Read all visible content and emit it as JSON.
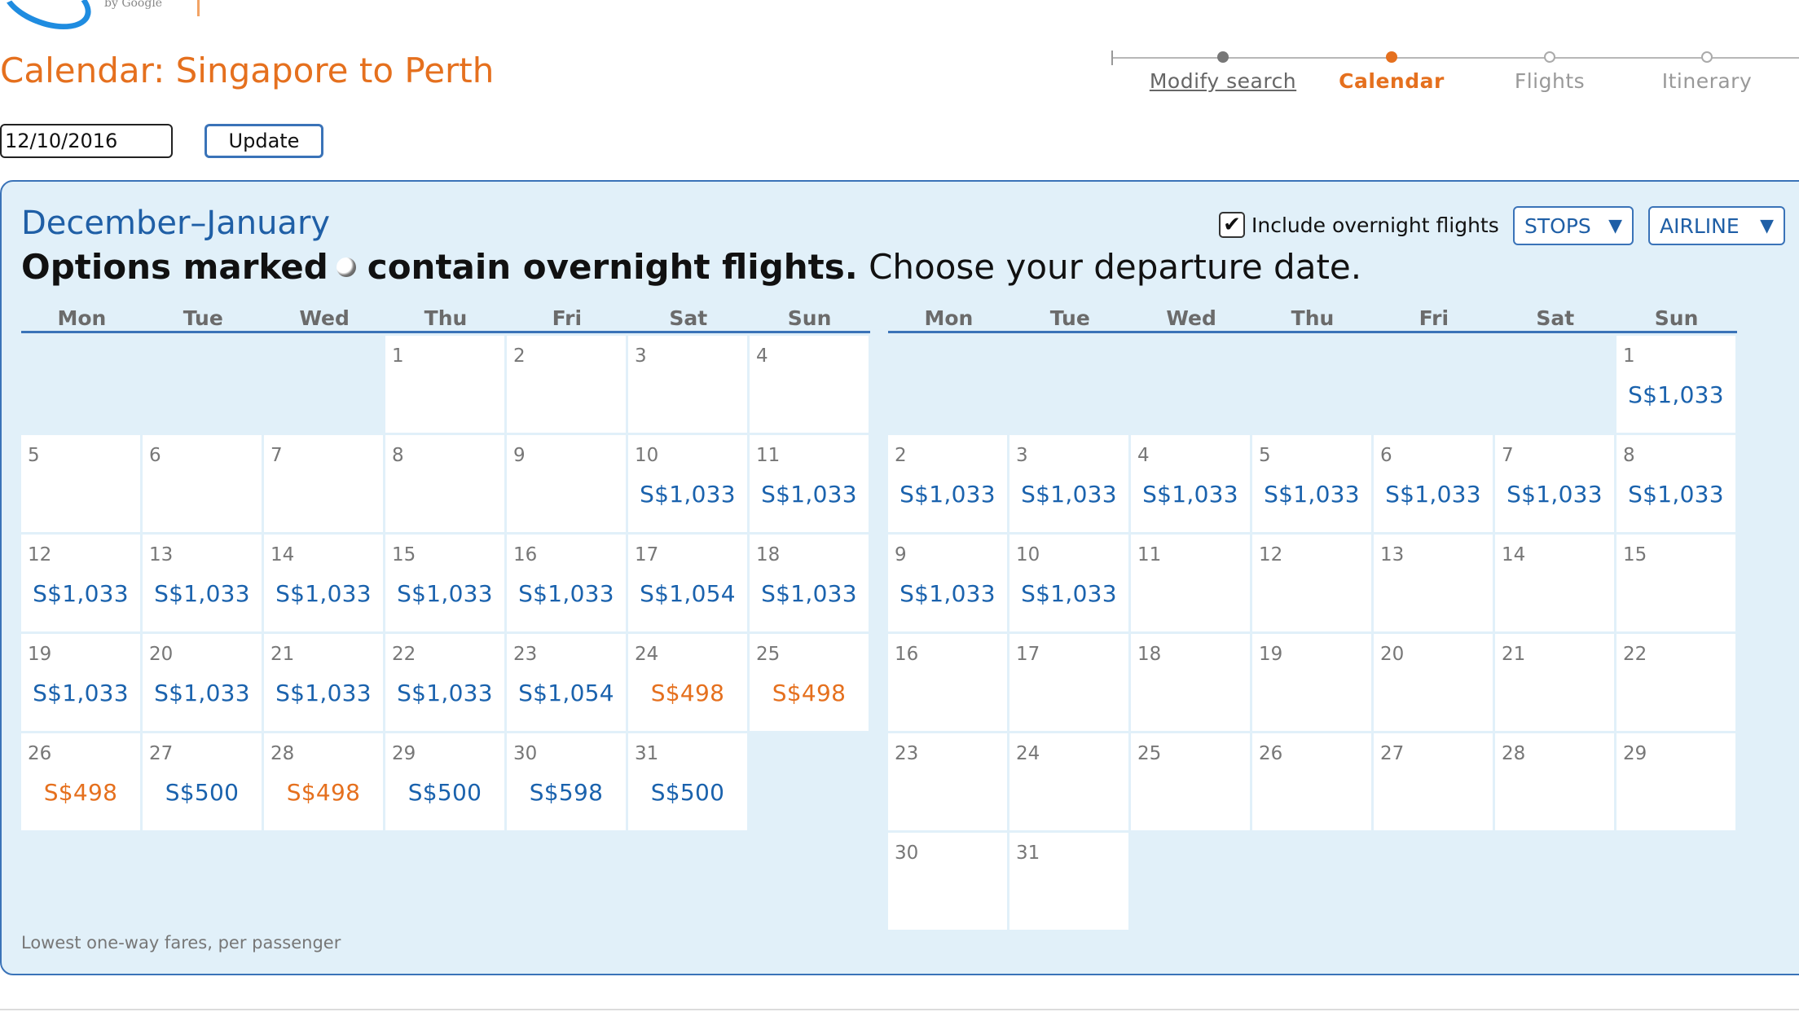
{
  "brand": {
    "tagline": "by Google",
    "logo_icon": "matrix-swoosh-logo"
  },
  "page_title": "Calendar: Singapore to Perth",
  "steps": [
    {
      "label": "Modify search",
      "state": "done"
    },
    {
      "label": "Calendar",
      "state": "current"
    },
    {
      "label": "Flights",
      "state": "todo"
    },
    {
      "label": "Itinerary",
      "state": "todo"
    }
  ],
  "date_value": "12/10/2016",
  "update_label": "Update",
  "months_title": "December–January",
  "legend": {
    "bold_prefix": "Options marked",
    "bold_suffix": "contain overnight flights.",
    "plain": "Choose your departure date.",
    "icon": "overnight-moon-icon"
  },
  "overnight_label": "Include overnight flights",
  "overnight_checked": true,
  "stops_label": "STOPS",
  "airline_label": "AIRLINE",
  "weekdays": [
    "Mon",
    "Tue",
    "Wed",
    "Thu",
    "Fri",
    "Sat",
    "Sun"
  ],
  "colors": {
    "accent_orange": "#e5701e",
    "link_blue": "#1a62ad",
    "panel_bg": "#e1f0f9",
    "border_blue": "#3a73b8"
  },
  "months": [
    {
      "name": "December",
      "offset": 3,
      "days": [
        {
          "d": "1"
        },
        {
          "d": "2"
        },
        {
          "d": "3"
        },
        {
          "d": "4"
        },
        {
          "d": "5"
        },
        {
          "d": "6"
        },
        {
          "d": "7"
        },
        {
          "d": "8"
        },
        {
          "d": "9"
        },
        {
          "d": "10",
          "p": "S$1,033"
        },
        {
          "d": "11",
          "p": "S$1,033"
        },
        {
          "d": "12",
          "p": "S$1,033"
        },
        {
          "d": "13",
          "p": "S$1,033"
        },
        {
          "d": "14",
          "p": "S$1,033"
        },
        {
          "d": "15",
          "p": "S$1,033"
        },
        {
          "d": "16",
          "p": "S$1,033"
        },
        {
          "d": "17",
          "p": "S$1,054"
        },
        {
          "d": "18",
          "p": "S$1,033"
        },
        {
          "d": "19",
          "p": "S$1,033"
        },
        {
          "d": "20",
          "p": "S$1,033"
        },
        {
          "d": "21",
          "p": "S$1,033"
        },
        {
          "d": "22",
          "p": "S$1,033"
        },
        {
          "d": "23",
          "p": "S$1,054"
        },
        {
          "d": "24",
          "p": "S$498",
          "low": true
        },
        {
          "d": "25",
          "p": "S$498",
          "low": true
        },
        {
          "d": "26",
          "p": "S$498",
          "low": true
        },
        {
          "d": "27",
          "p": "S$500"
        },
        {
          "d": "28",
          "p": "S$498",
          "low": true
        },
        {
          "d": "29",
          "p": "S$500"
        },
        {
          "d": "30",
          "p": "S$598"
        },
        {
          "d": "31",
          "p": "S$500"
        }
      ]
    },
    {
      "name": "January",
      "offset": 6,
      "days": [
        {
          "d": "1",
          "p": "S$1,033"
        },
        {
          "d": "2",
          "p": "S$1,033"
        },
        {
          "d": "3",
          "p": "S$1,033"
        },
        {
          "d": "4",
          "p": "S$1,033"
        },
        {
          "d": "5",
          "p": "S$1,033"
        },
        {
          "d": "6",
          "p": "S$1,033"
        },
        {
          "d": "7",
          "p": "S$1,033"
        },
        {
          "d": "8",
          "p": "S$1,033"
        },
        {
          "d": "9",
          "p": "S$1,033"
        },
        {
          "d": "10",
          "p": "S$1,033"
        },
        {
          "d": "11"
        },
        {
          "d": "12"
        },
        {
          "d": "13"
        },
        {
          "d": "14"
        },
        {
          "d": "15"
        },
        {
          "d": "16"
        },
        {
          "d": "17"
        },
        {
          "d": "18"
        },
        {
          "d": "19"
        },
        {
          "d": "20"
        },
        {
          "d": "21"
        },
        {
          "d": "22"
        },
        {
          "d": "23"
        },
        {
          "d": "24"
        },
        {
          "d": "25"
        },
        {
          "d": "26"
        },
        {
          "d": "27"
        },
        {
          "d": "28"
        },
        {
          "d": "29"
        },
        {
          "d": "30"
        },
        {
          "d": "31"
        }
      ]
    }
  ],
  "footnote": "Lowest one-way fares, per passenger"
}
